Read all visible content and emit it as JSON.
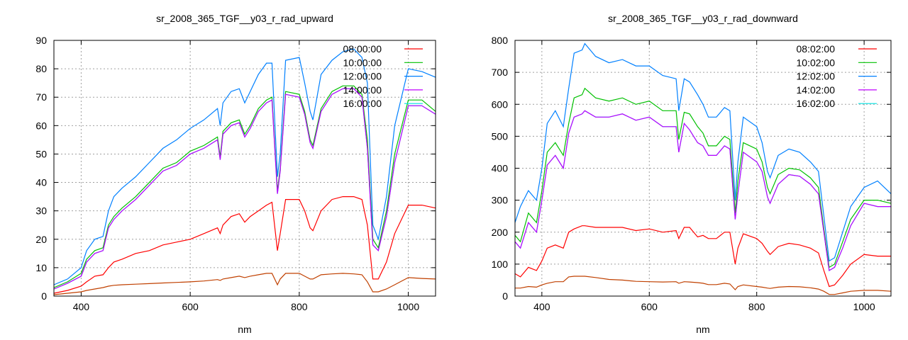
{
  "chart_data": [
    {
      "type": "line",
      "title": "sr_2008_365_TGF__y03_r_rad_upward",
      "xlabel": "nm",
      "ylabel": "",
      "xlim": [
        350,
        1050
      ],
      "ylim": [
        0,
        90
      ],
      "xticks": [
        400,
        600,
        800,
        1000
      ],
      "yticks": [
        0,
        10,
        20,
        30,
        40,
        50,
        60,
        70,
        80,
        90
      ],
      "grid": true,
      "legend_position": "top-right",
      "x": [
        350,
        375,
        400,
        410,
        425,
        440,
        450,
        460,
        475,
        500,
        525,
        550,
        575,
        600,
        625,
        650,
        655,
        660,
        675,
        690,
        700,
        710,
        725,
        740,
        750,
        760,
        765,
        775,
        800,
        810,
        820,
        825,
        840,
        860,
        880,
        900,
        915,
        925,
        935,
        945,
        960,
        975,
        1000,
        1025,
        1050
      ],
      "series": [
        {
          "name": "16:00:00",
          "color": "#00e0e0",
          "values": [
            2.5,
            4.5,
            7,
            12,
            15,
            16,
            24,
            27,
            30,
            34,
            39,
            44,
            46,
            50,
            52,
            55,
            48,
            57,
            60,
            61,
            56,
            59,
            65,
            68,
            69,
            36,
            44,
            71,
            70,
            64,
            54,
            52,
            65,
            71,
            73,
            73,
            70,
            52,
            18,
            16,
            28,
            47,
            67,
            67,
            64
          ]
        },
        {
          "name": "",
          "color": "#c04000",
          "values": [
            0.5,
            1,
            1.5,
            2,
            2.5,
            3,
            3.5,
            3.8,
            4,
            4.2,
            4.4,
            4.6,
            4.8,
            5,
            5.3,
            5.8,
            5.5,
            6,
            6.5,
            7,
            6.5,
            7,
            7.5,
            8,
            8,
            4,
            6,
            8,
            8,
            7,
            6,
            6,
            7.5,
            7.8,
            8,
            7.8,
            7.5,
            5,
            1.5,
            1.5,
            2.5,
            4,
            6.5,
            6.2,
            6
          ]
        },
        {
          "name": "08:00:00",
          "color": "#ff0000",
          "values": [
            1,
            2,
            3.5,
            5,
            7,
            7.5,
            10,
            12,
            13,
            15,
            16,
            18,
            19,
            20,
            22,
            24,
            22,
            25,
            28,
            29,
            26,
            28,
            30,
            32,
            33,
            16,
            22,
            34,
            34,
            30,
            24,
            23,
            30,
            34,
            35,
            35,
            34,
            25,
            6,
            6,
            12,
            22,
            32,
            32,
            31
          ]
        },
        {
          "name": "12:00:00",
          "color": "#0080ff",
          "values": [
            4,
            6,
            10,
            16,
            20,
            21,
            30,
            35,
            38,
            42,
            47,
            52,
            55,
            59,
            62,
            66,
            60,
            68,
            72,
            73,
            68,
            72,
            78,
            82,
            82,
            42,
            50,
            83,
            84,
            75,
            65,
            62,
            78,
            83,
            86,
            87,
            84,
            75,
            25,
            20,
            35,
            60,
            80,
            79,
            77
          ]
        },
        {
          "name": "10:00:00",
          "color": "#00c000",
          "values": [
            3,
            5,
            8,
            13,
            16,
            17,
            25,
            28,
            31,
            35,
            40,
            45,
            47,
            51,
            53,
            56,
            49,
            58,
            61,
            62,
            57,
            60,
            66,
            69,
            70,
            37,
            45,
            72,
            71,
            65,
            55,
            53,
            66,
            72,
            74,
            74,
            71,
            55,
            20,
            17,
            30,
            50,
            69,
            69,
            65
          ]
        },
        {
          "name": "14:00:00",
          "color": "#c000ff",
          "values": [
            2.5,
            4.5,
            7,
            12,
            15,
            16,
            24,
            27,
            30,
            34,
            39,
            44,
            46,
            50,
            52,
            55,
            48,
            57,
            60,
            61,
            56,
            59,
            65,
            68,
            69,
            36,
            44,
            71,
            70,
            64,
            54,
            52,
            65,
            71,
            73,
            73,
            70,
            52,
            18,
            16,
            28,
            47,
            67,
            67,
            64
          ]
        }
      ],
      "legend_order": [
        "08:00:00",
        "10:00:00",
        "12:00:00",
        "14:00:00",
        "16:00:00"
      ]
    },
    {
      "type": "line",
      "title": "sr_2008_365_TGF__y03_r_rad_downward",
      "xlabel": "nm",
      "ylabel": "",
      "xlim": [
        350,
        1050
      ],
      "ylim": [
        0,
        800
      ],
      "xticks": [
        400,
        600,
        800,
        1000
      ],
      "yticks": [
        0,
        100,
        200,
        300,
        400,
        500,
        600,
        700,
        800
      ],
      "grid": true,
      "legend_position": "top-right",
      "x": [
        350,
        360,
        375,
        390,
        400,
        410,
        425,
        440,
        450,
        460,
        475,
        480,
        500,
        525,
        550,
        575,
        600,
        625,
        650,
        655,
        665,
        675,
        690,
        700,
        710,
        725,
        740,
        750,
        760,
        765,
        775,
        800,
        810,
        820,
        825,
        840,
        860,
        880,
        900,
        915,
        925,
        935,
        945,
        960,
        975,
        1000,
        1025,
        1050
      ],
      "series": [
        {
          "name": "16:02:00",
          "color": "#00e0e0",
          "values": [
            170,
            150,
            230,
            200,
            300,
            410,
            440,
            400,
            510,
            560,
            570,
            580,
            560,
            560,
            570,
            550,
            560,
            530,
            530,
            450,
            540,
            520,
            480,
            470,
            440,
            440,
            470,
            460,
            240,
            320,
            450,
            420,
            390,
            310,
            290,
            350,
            380,
            375,
            350,
            320,
            200,
            80,
            90,
            150,
            220,
            290,
            280,
            280
          ]
        },
        {
          "name": "",
          "color": "#c04000",
          "values": [
            25,
            25,
            30,
            28,
            35,
            40,
            45,
            45,
            60,
            62,
            62,
            62,
            58,
            52,
            50,
            46,
            45,
            44,
            45,
            40,
            45,
            44,
            42,
            40,
            36,
            36,
            40,
            38,
            20,
            30,
            35,
            30,
            28,
            25,
            24,
            28,
            30,
            29,
            26,
            22,
            15,
            5,
            5,
            10,
            15,
            18,
            18,
            15
          ]
        },
        {
          "name": "08:02:00",
          "color": "#ff0000",
          "values": [
            70,
            60,
            90,
            80,
            110,
            150,
            160,
            150,
            200,
            210,
            220,
            220,
            215,
            215,
            215,
            205,
            210,
            200,
            205,
            180,
            215,
            215,
            185,
            190,
            180,
            180,
            200,
            200,
            100,
            150,
            195,
            180,
            165,
            140,
            130,
            155,
            165,
            160,
            150,
            135,
            80,
            30,
            35,
            65,
            100,
            130,
            125,
            125
          ]
        },
        {
          "name": "12:02:00",
          "color": "#0080ff",
          "values": [
            230,
            280,
            330,
            300,
            400,
            540,
            580,
            530,
            650,
            760,
            770,
            790,
            750,
            730,
            740,
            720,
            720,
            690,
            680,
            580,
            680,
            670,
            630,
            600,
            560,
            560,
            590,
            580,
            300,
            420,
            560,
            530,
            480,
            390,
            370,
            440,
            460,
            450,
            420,
            390,
            250,
            110,
            120,
            200,
            280,
            340,
            360,
            320
          ]
        },
        {
          "name": "10:02:00",
          "color": "#00c000",
          "values": [
            190,
            170,
            260,
            230,
            330,
            450,
            480,
            440,
            540,
            620,
            630,
            650,
            620,
            610,
            620,
            600,
            610,
            580,
            580,
            490,
            575,
            570,
            530,
            510,
            470,
            470,
            500,
            490,
            260,
            360,
            480,
            460,
            420,
            340,
            320,
            380,
            400,
            395,
            370,
            340,
            210,
            90,
            100,
            170,
            240,
            300,
            300,
            290
          ]
        },
        {
          "name": "14:02:00",
          "color": "#c000ff",
          "values": [
            170,
            150,
            230,
            200,
            300,
            410,
            440,
            400,
            510,
            560,
            570,
            580,
            560,
            560,
            570,
            550,
            560,
            530,
            530,
            450,
            540,
            520,
            480,
            470,
            440,
            440,
            470,
            460,
            240,
            320,
            450,
            420,
            390,
            310,
            290,
            350,
            380,
            375,
            350,
            320,
            200,
            80,
            90,
            150,
            220,
            290,
            280,
            280
          ]
        }
      ],
      "legend_order": [
        "08:02:00",
        "10:02:00",
        "12:02:00",
        "14:02:00",
        "16:02:00"
      ]
    }
  ]
}
